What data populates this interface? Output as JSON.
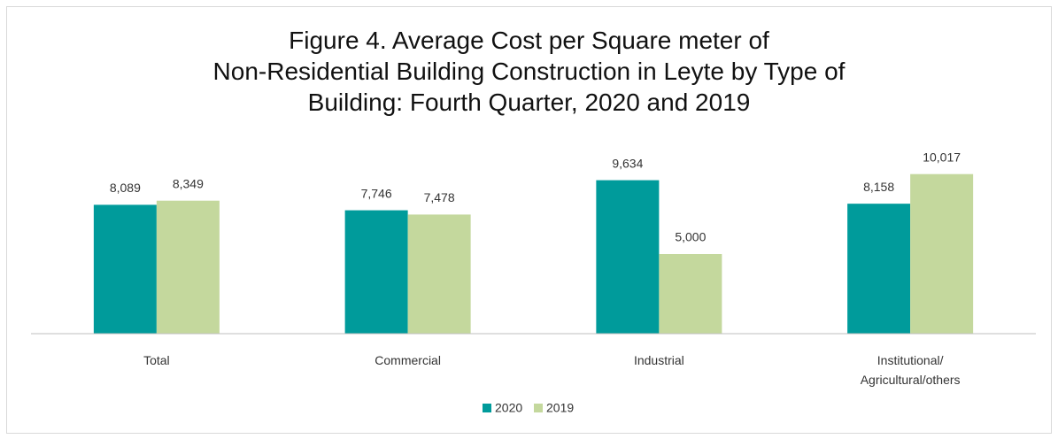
{
  "chart_data": {
    "type": "bar",
    "title": "Figure 4. Average Cost per Square meter of\nNon-Residential Building Construction in Leyte by Type of\nBuilding: Fourth Quarter, 2020 and 2019",
    "categories": [
      "Total",
      "Commercial",
      "Industrial",
      "Institutional/ Agricultural/others"
    ],
    "series": [
      {
        "name": "2020",
        "color": "#009b9b",
        "values": [
          8089,
          7746,
          9634,
          8158
        ],
        "value_labels": [
          "8,089",
          "7,746",
          "9,634",
          "8,158"
        ]
      },
      {
        "name": "2019",
        "color": "#c4d89d",
        "values": [
          8349,
          7478,
          5000,
          10017
        ],
        "value_labels": [
          "8,349",
          "7,478",
          "5,000",
          "10,017"
        ]
      }
    ],
    "ylim": [
      0,
      12000
    ],
    "legend": "bottom"
  }
}
